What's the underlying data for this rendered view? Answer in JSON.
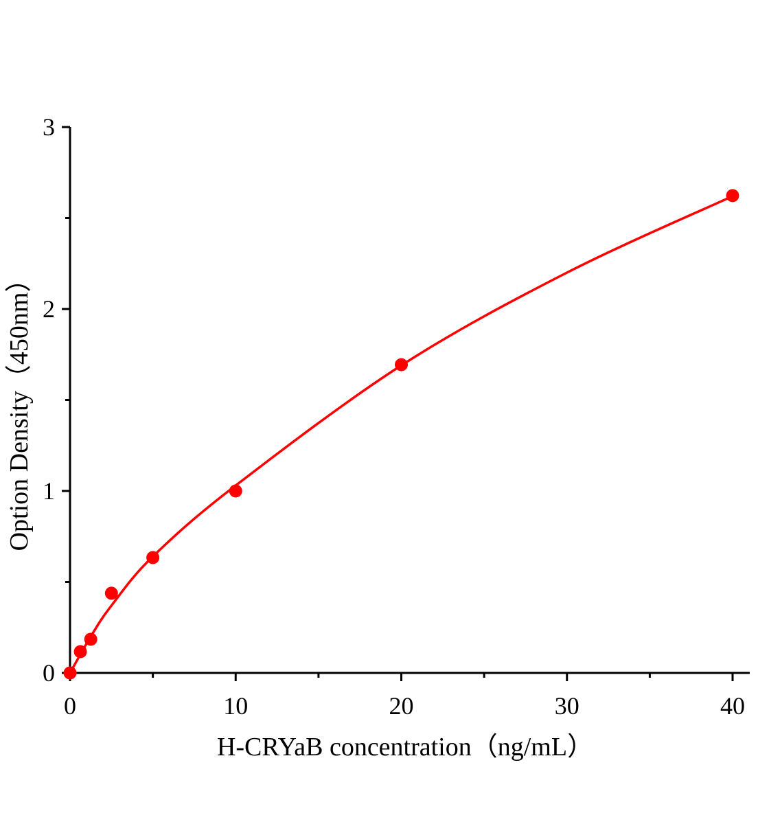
{
  "chart_data": {
    "type": "scatter",
    "title": "",
    "xlabel": "H-CRYaB concentration（ng/mL）",
    "ylabel": "Option Density（450nm）",
    "xlim": [
      0,
      41
    ],
    "ylim": [
      0,
      3
    ],
    "xticks": [
      "0",
      "10",
      "20",
      "30",
      "40"
    ],
    "yticks": [
      "0",
      "1",
      "2",
      "3"
    ],
    "grid": false,
    "legend": "none",
    "color": "#ff0000",
    "points": {
      "x": [
        0,
        0.625,
        1.25,
        2.5,
        5,
        10,
        20,
        40
      ],
      "y": [
        0,
        0.117,
        0.185,
        0.438,
        0.634,
        1.0,
        1.694,
        2.623
      ]
    },
    "fit_curve": {
      "x": [
        0,
        1.25,
        2.5,
        5,
        10,
        20,
        30,
        40
      ],
      "y": [
        0,
        0.2,
        0.37,
        0.64,
        1.03,
        1.69,
        2.2,
        2.62
      ]
    }
  }
}
